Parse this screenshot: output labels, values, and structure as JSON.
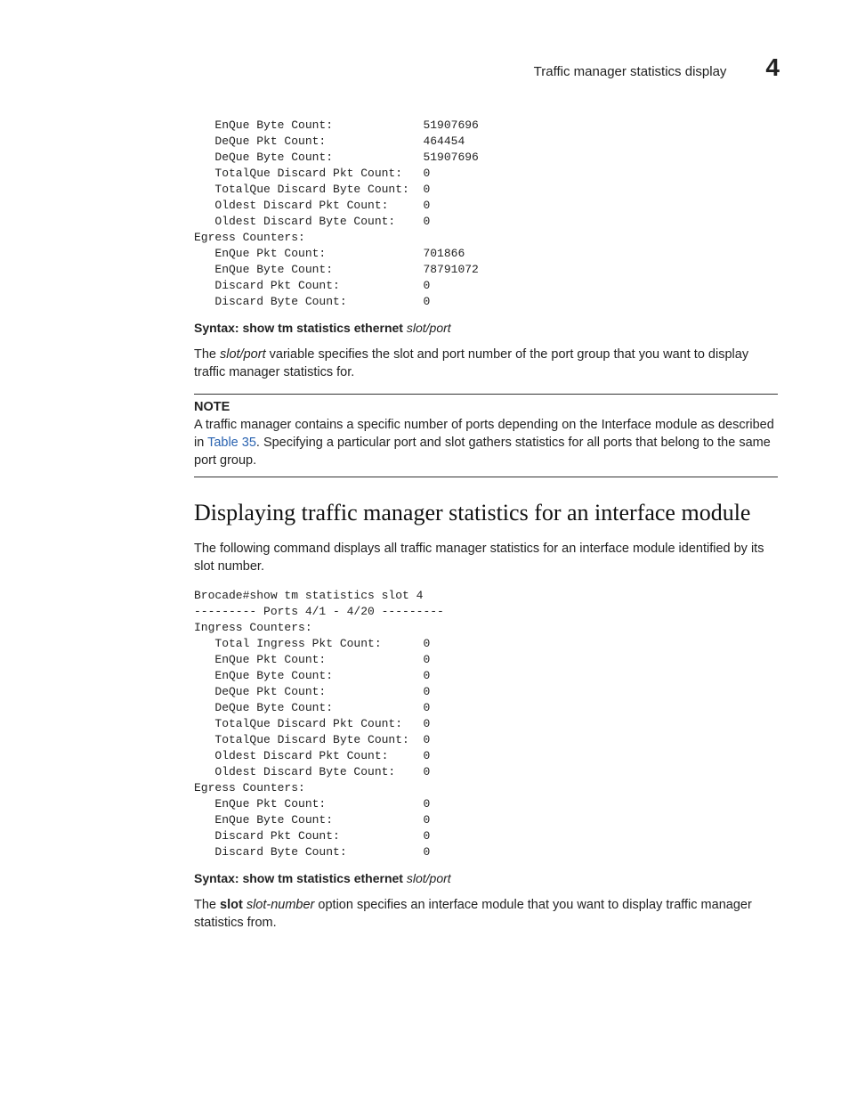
{
  "header": {
    "title": "Traffic manager statistics display",
    "chapter_number": "4"
  },
  "mono_block_1": {
    "label_col_width": 33,
    "indent": "   ",
    "lines": [
      {
        "label": "EnQue Byte Count:",
        "value": "51907696",
        "indent": true
      },
      {
        "label": "DeQue Pkt Count:",
        "value": "464454",
        "indent": true
      },
      {
        "label": "DeQue Byte Count:",
        "value": "51907696",
        "indent": true
      },
      {
        "label": "TotalQue Discard Pkt Count:",
        "value": "0",
        "indent": true
      },
      {
        "label": "TotalQue Discard Byte Count:",
        "value": "0",
        "indent": true
      },
      {
        "label": "Oldest Discard Pkt Count:",
        "value": "0",
        "indent": true
      },
      {
        "label": "Oldest Discard Byte Count:",
        "value": "0",
        "indent": true
      },
      {
        "label": "Egress Counters:",
        "value": "",
        "indent": false
      },
      {
        "label": "EnQue Pkt Count:",
        "value": "701866",
        "indent": true
      },
      {
        "label": "EnQue Byte Count:",
        "value": "78791072",
        "indent": true
      },
      {
        "label": "Discard Pkt Count:",
        "value": "0",
        "indent": true
      },
      {
        "label": "Discard Byte Count:",
        "value": "0",
        "indent": true
      }
    ]
  },
  "syntax1": {
    "label": "Syntax:",
    "command": "show tm statistics ethernet",
    "args_italic": "slot/port"
  },
  "para1_pre_it": "The ",
  "para1_it": "slot/port",
  "para1_post_it": " variable specifies the slot and port number of the port group that you want to display traffic manager statistics for.",
  "note": {
    "heading": "NOTE",
    "text_before_link": "A traffic manager contains a specific number of ports depending on the Interface module as described in ",
    "link_text": "Table 35",
    "text_after_link": ". Specifying a particular port and slot gathers statistics for all ports that belong to the same port group."
  },
  "section_heading": "Displaying traffic manager statistics for an interface module",
  "para2": "The following command displays all traffic manager statistics for an interface module identified by its slot number.",
  "mono_block_2": {
    "label_col_width": 33,
    "indent": "   ",
    "prelines": [
      "Brocade#show tm statistics slot 4",
      "--------- Ports 4/1 - 4/20 ---------"
    ],
    "lines": [
      {
        "label": "Ingress Counters:",
        "value": "",
        "indent": false
      },
      {
        "label": "Total Ingress Pkt Count:",
        "value": "0",
        "indent": true
      },
      {
        "label": "EnQue Pkt Count:",
        "value": "0",
        "indent": true
      },
      {
        "label": "EnQue Byte Count:",
        "value": "0",
        "indent": true
      },
      {
        "label": "DeQue Pkt Count:",
        "value": "0",
        "indent": true
      },
      {
        "label": "DeQue Byte Count:",
        "value": "0",
        "indent": true
      },
      {
        "label": "TotalQue Discard Pkt Count:",
        "value": "0",
        "indent": true
      },
      {
        "label": "TotalQue Discard Byte Count:",
        "value": "0",
        "indent": true
      },
      {
        "label": "Oldest Discard Pkt Count:",
        "value": "0",
        "indent": true
      },
      {
        "label": "Oldest Discard Byte Count:",
        "value": "0",
        "indent": true
      },
      {
        "label": "Egress Counters:",
        "value": "",
        "indent": false
      },
      {
        "label": "EnQue Pkt Count:",
        "value": "0",
        "indent": true
      },
      {
        "label": "EnQue Byte Count:",
        "value": "0",
        "indent": true
      },
      {
        "label": "Discard Pkt Count:",
        "value": "0",
        "indent": true
      },
      {
        "label": "Discard Byte Count:",
        "value": "0",
        "indent": true
      }
    ]
  },
  "syntax2": {
    "label": "Syntax:",
    "command": "show tm statistics ethernet",
    "args_italic": "slot/port"
  },
  "para3_pre": "The ",
  "para3_bold": "slot",
  "para3_mid": " ",
  "para3_it": "slot-number",
  "para3_post": " option specifies an interface module that you want to display traffic manager statistics from."
}
